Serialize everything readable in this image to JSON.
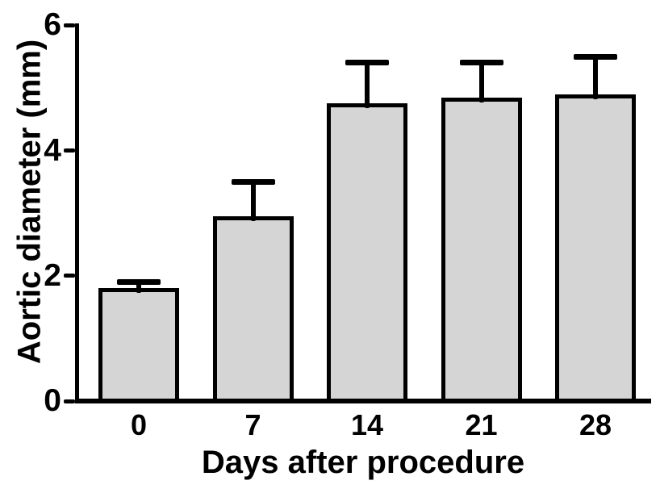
{
  "chart_data": {
    "type": "bar",
    "title": "",
    "xlabel": "Days after procedure",
    "ylabel": "Aortic diameter (mm)",
    "categories": [
      "0",
      "7",
      "14",
      "21",
      "28"
    ],
    "series": [
      {
        "name": "Aortic diameter",
        "values": [
          1.8,
          2.95,
          4.75,
          4.85,
          4.9
        ],
        "errors_upper": [
          0.1,
          0.55,
          0.65,
          0.55,
          0.6
        ]
      }
    ],
    "ylim": [
      0,
      6
    ],
    "yticks": [
      "0",
      "2",
      "4",
      "6"
    ],
    "grid": false,
    "legend": null,
    "colors": {
      "bar_fill": "#d5d5d5",
      "bar_border": "#000000",
      "axis": "#000000",
      "text": "#000000",
      "background": "#ffffff"
    }
  }
}
